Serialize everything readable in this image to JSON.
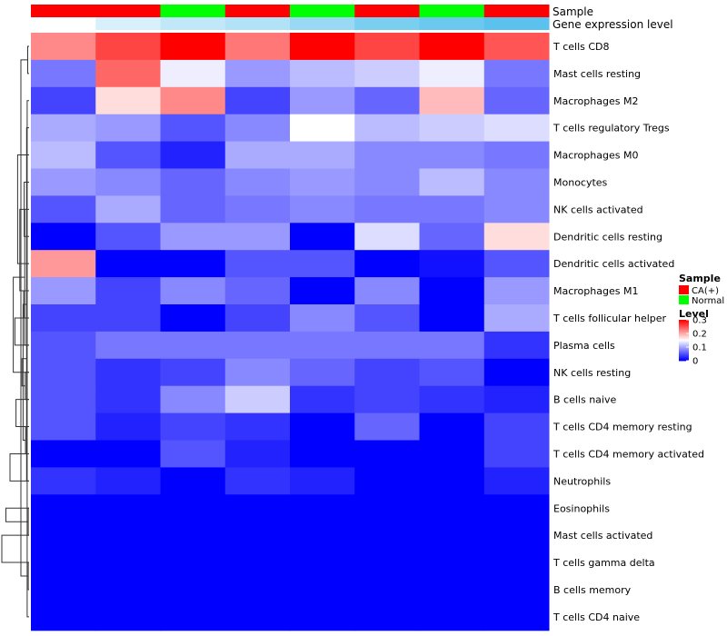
{
  "chart_data": {
    "type": "heatmap",
    "annotation_rows": [
      {
        "name": "Sample",
        "values": [
          "CA(+)",
          "CA(+)",
          "Normal",
          "CA(+)",
          "Normal",
          "CA(+)",
          "Normal",
          "CA(+)"
        ]
      },
      {
        "name": "Gene expression level",
        "values": [
          0.3,
          0.25,
          0.22,
          0.2,
          0.17,
          0.13,
          0.11,
          0.09
        ]
      }
    ],
    "rows": [
      "T cells CD8",
      "Mast cells resting",
      "Macrophages M2",
      "T cells regulatory  Tregs",
      "Macrophages M0",
      "Monocytes",
      "NK cells activated",
      "Dendritic cells resting",
      "Dendritic cells activated",
      "Macrophages M1",
      "T cells follicular helper",
      "Plasma cells",
      "NK cells resting",
      "B cells naive",
      "T cells CD4 memory resting",
      "T cells CD4 memory activated",
      "Neutrophils",
      "Eosinophils",
      "Mast cells activated",
      "T cells gamma delta",
      "B cells memory",
      "T cells CD4 naive"
    ],
    "values": [
      [
        0.22,
        0.26,
        0.3,
        0.23,
        0.3,
        0.26,
        0.3,
        0.25
      ],
      [
        0.07,
        0.24,
        0.14,
        0.09,
        0.11,
        0.12,
        0.14,
        0.07
      ],
      [
        0.04,
        0.17,
        0.22,
        0.04,
        0.09,
        0.06,
        0.19,
        0.06
      ],
      [
        0.1,
        0.09,
        0.05,
        0.08,
        0.15,
        0.11,
        0.12,
        0.13
      ],
      [
        0.11,
        0.05,
        0.02,
        0.1,
        0.1,
        0.08,
        0.08,
        0.07
      ],
      [
        0.09,
        0.08,
        0.06,
        0.08,
        0.09,
        0.08,
        0.11,
        0.08
      ],
      [
        0.05,
        0.1,
        0.06,
        0.07,
        0.08,
        0.07,
        0.07,
        0.08
      ],
      [
        0.0,
        0.05,
        0.09,
        0.09,
        0.0,
        0.13,
        0.06,
        0.17
      ],
      [
        0.21,
        0.0,
        0.0,
        0.05,
        0.05,
        0.0,
        0.01,
        0.05
      ],
      [
        0.09,
        0.04,
        0.08,
        0.06,
        0.0,
        0.08,
        0.0,
        0.09
      ],
      [
        0.04,
        0.04,
        0.0,
        0.04,
        0.08,
        0.05,
        0.0,
        0.1
      ],
      [
        0.05,
        0.07,
        0.07,
        0.07,
        0.07,
        0.07,
        0.07,
        0.03
      ],
      [
        0.05,
        0.03,
        0.04,
        0.08,
        0.06,
        0.04,
        0.05,
        0.0
      ],
      [
        0.05,
        0.03,
        0.08,
        0.12,
        0.03,
        0.04,
        0.03,
        0.02
      ],
      [
        0.05,
        0.02,
        0.04,
        0.03,
        0.0,
        0.06,
        0.0,
        0.04
      ],
      [
        0.0,
        0.0,
        0.05,
        0.02,
        0.0,
        0.0,
        0.0,
        0.04
      ],
      [
        0.03,
        0.02,
        0.0,
        0.03,
        0.02,
        0.0,
        0.0,
        0.02
      ],
      [
        0.0,
        0.0,
        0.0,
        0.0,
        0.0,
        0.0,
        0.0,
        0.0
      ],
      [
        0.0,
        0.0,
        0.0,
        0.0,
        0.0,
        0.0,
        0.0,
        0.0
      ],
      [
        0.0,
        0.0,
        0.0,
        0.0,
        0.0,
        0.0,
        0.0,
        0.0
      ],
      [
        0.0,
        0.0,
        0.0,
        0.0,
        0.0,
        0.0,
        0.0,
        0.0
      ],
      [
        0.0,
        0.0,
        0.0,
        0.0,
        0.0,
        0.0,
        0.0,
        0.0
      ]
    ],
    "row_dendrogram_merges": [
      [
        17,
        18,
        0.03
      ],
      [
        19,
        20,
        0.03
      ],
      [
        -1,
        -2,
        0.05
      ],
      [
        21,
        -3,
        0.07
      ],
      [
        -4,
        16,
        0.09
      ],
      [
        14,
        15,
        0.13
      ],
      [
        12,
        13,
        0.14
      ],
      [
        -7,
        11,
        0.16
      ],
      [
        -6,
        -8,
        0.18
      ],
      [
        9,
        10,
        0.2
      ],
      [
        4,
        5,
        0.22
      ],
      [
        6,
        3,
        0.26
      ],
      [
        1,
        2,
        0.3
      ],
      [
        -10,
        8,
        0.34
      ],
      [
        -5,
        -9,
        0.42
      ],
      [
        -15,
        -14,
        0.48
      ],
      [
        -11,
        -12,
        0.52
      ],
      [
        7,
        -13,
        0.58
      ],
      [
        -16,
        -17,
        0.7
      ],
      [
        -18,
        0,
        0.85
      ],
      [
        -19,
        -20,
        1.0
      ]
    ],
    "color_scale": {
      "min": 0,
      "mid": 0.15,
      "max": 0.3,
      "low_color": "#0000ff",
      "mid_color": "#ffffff",
      "high_color": "#ff0000",
      "ticks": [
        0,
        0.1,
        0.2,
        0.3
      ],
      "tick_labels": [
        "0",
        "0.1",
        "0.2",
        "0.3"
      ]
    },
    "gene_expression_scale": {
      "low_color": "#5bc2ed",
      "high_color": "#ffffff"
    },
    "legend": {
      "sample_title": "Sample",
      "sample_entries": [
        {
          "label": "CA(+)",
          "color": "#ff0000"
        },
        {
          "label": "Normal",
          "color": "#00ff00"
        }
      ],
      "level_title": "Level"
    },
    "title": "",
    "xlabel": "",
    "ylabel": ""
  }
}
